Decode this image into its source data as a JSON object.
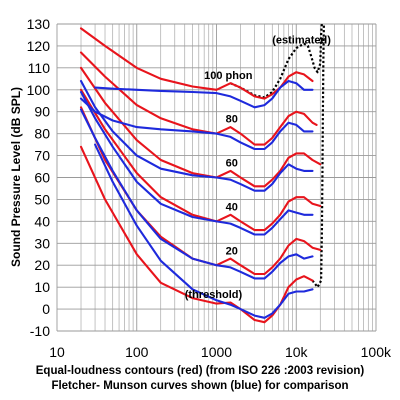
{
  "chart_data": {
    "type": "line",
    "title": "",
    "ylabel": "Sound Pressure Level (dB SPL)",
    "xscale": "log",
    "xlim": [
      10,
      100000
    ],
    "ylim": [
      -10,
      130
    ],
    "grid": true,
    "xticks": [
      {
        "value": 10,
        "label": "10"
      },
      {
        "value": 100,
        "label": "100"
      },
      {
        "value": 1000,
        "label": "1000"
      },
      {
        "value": 10000,
        "label": "10k"
      },
      {
        "value": 100000,
        "label": "100k"
      }
    ],
    "yticks": [
      {
        "value": 130,
        "label": "130"
      },
      {
        "value": 120,
        "label": "120"
      },
      {
        "value": 110,
        "label": "110"
      },
      {
        "value": 100,
        "label": "100"
      },
      {
        "value": 90,
        "label": "90"
      },
      {
        "value": 80,
        "label": "80"
      },
      {
        "value": 70,
        "label": "70"
      },
      {
        "value": 60,
        "label": "60"
      },
      {
        "value": 50,
        "label": "50"
      },
      {
        "value": 40,
        "label": "40"
      },
      {
        "value": 30,
        "label": "30"
      },
      {
        "value": 20,
        "label": "20"
      },
      {
        "value": 10,
        "label": "10"
      },
      {
        "value": 0,
        "label": "0"
      },
      {
        "value": -10,
        "label": "-10"
      }
    ],
    "colors": {
      "iso": "#e8141c",
      "fm": "#1e2adc",
      "est": "#000000",
      "grid": "#9a9a9a"
    },
    "iso_series": [
      {
        "id": "iso-100",
        "points": [
          [
            20,
            128
          ],
          [
            40,
            120
          ],
          [
            100,
            110
          ],
          [
            200,
            105
          ],
          [
            500,
            101.5
          ],
          [
            1000,
            100
          ],
          [
            1500,
            103
          ],
          [
            2000,
            101
          ],
          [
            3000,
            97
          ],
          [
            4000,
            96
          ],
          [
            5000,
            98
          ],
          [
            6300,
            101
          ],
          [
            8000,
            106
          ],
          [
            10000,
            108
          ],
          [
            12500,
            107
          ],
          [
            16000,
            104
          ]
        ]
      },
      {
        "id": "iso-80",
        "points": [
          [
            20,
            117
          ],
          [
            40,
            106
          ],
          [
            100,
            93
          ],
          [
            200,
            87
          ],
          [
            500,
            82
          ],
          [
            1000,
            80
          ],
          [
            1500,
            83
          ],
          [
            2000,
            80
          ],
          [
            3000,
            75
          ],
          [
            4000,
            75
          ],
          [
            5000,
            78
          ],
          [
            6300,
            83
          ],
          [
            8000,
            88
          ],
          [
            10000,
            90
          ],
          [
            12500,
            89
          ],
          [
            16000,
            85
          ],
          [
            18000,
            84
          ]
        ]
      },
      {
        "id": "iso-60",
        "points": [
          [
            20,
            110
          ],
          [
            40,
            94
          ],
          [
            100,
            77
          ],
          [
            200,
            68
          ],
          [
            500,
            62
          ],
          [
            1000,
            60
          ],
          [
            1500,
            63
          ],
          [
            2000,
            60
          ],
          [
            3000,
            56
          ],
          [
            4000,
            56
          ],
          [
            5000,
            59
          ],
          [
            6300,
            63
          ],
          [
            8000,
            69
          ],
          [
            10000,
            71
          ],
          [
            12500,
            71
          ],
          [
            16000,
            68
          ],
          [
            20000,
            66
          ]
        ]
      },
      {
        "id": "iso-40",
        "points": [
          [
            20,
            100
          ],
          [
            40,
            82
          ],
          [
            100,
            62
          ],
          [
            200,
            51
          ],
          [
            500,
            43
          ],
          [
            1000,
            40
          ],
          [
            1500,
            43
          ],
          [
            2000,
            40
          ],
          [
            3000,
            36
          ],
          [
            4000,
            36
          ],
          [
            5000,
            39
          ],
          [
            6300,
            43
          ],
          [
            8000,
            49
          ],
          [
            10000,
            51
          ],
          [
            12500,
            51
          ],
          [
            16000,
            48
          ],
          [
            20000,
            47
          ]
        ]
      },
      {
        "id": "iso-20",
        "points": [
          [
            20,
            92
          ],
          [
            40,
            68
          ],
          [
            100,
            45
          ],
          [
            200,
            33
          ],
          [
            500,
            23
          ],
          [
            1000,
            20
          ],
          [
            1500,
            23
          ],
          [
            2000,
            20
          ],
          [
            3000,
            16
          ],
          [
            4000,
            16
          ],
          [
            5000,
            19
          ],
          [
            6300,
            23
          ],
          [
            8000,
            29
          ],
          [
            10000,
            32
          ],
          [
            12500,
            31
          ],
          [
            16000,
            28
          ],
          [
            20000,
            27
          ]
        ]
      },
      {
        "id": "iso-threshold",
        "points": [
          [
            20,
            74
          ],
          [
            40,
            50
          ],
          [
            100,
            25
          ],
          [
            200,
            12
          ],
          [
            500,
            5
          ],
          [
            1000,
            2.5
          ],
          [
            1500,
            3
          ],
          [
            2000,
            0
          ],
          [
            3000,
            -5
          ],
          [
            4000,
            -6
          ],
          [
            5000,
            -3
          ],
          [
            6300,
            2
          ],
          [
            8000,
            10
          ],
          [
            10000,
            13.5
          ],
          [
            12500,
            15
          ],
          [
            16000,
            13
          ]
        ]
      }
    ],
    "fm_series": [
      {
        "id": "fm-100",
        "points": [
          [
            30,
            101
          ],
          [
            50,
            100.5
          ],
          [
            100,
            100
          ],
          [
            200,
            99.5
          ],
          [
            500,
            99
          ],
          [
            1000,
            98.5
          ],
          [
            1500,
            97
          ],
          [
            2000,
            95
          ],
          [
            3000,
            92
          ],
          [
            4000,
            93
          ],
          [
            5000,
            96
          ],
          [
            6300,
            101
          ],
          [
            8000,
            104
          ],
          [
            10000,
            103
          ],
          [
            12500,
            100
          ],
          [
            16000,
            100
          ]
        ]
      },
      {
        "id": "fm-80",
        "points": [
          [
            20,
            96
          ],
          [
            30,
            90
          ],
          [
            50,
            86
          ],
          [
            100,
            83
          ],
          [
            200,
            82
          ],
          [
            500,
            81
          ],
          [
            1000,
            80
          ],
          [
            1500,
            78.5
          ],
          [
            2000,
            76
          ],
          [
            3000,
            73
          ],
          [
            4000,
            73
          ],
          [
            5000,
            76
          ],
          [
            6300,
            81
          ],
          [
            8000,
            85
          ],
          [
            10000,
            84
          ],
          [
            12500,
            81
          ],
          [
            16000,
            81
          ]
        ]
      },
      {
        "id": "fm-60",
        "points": [
          [
            20,
            104
          ],
          [
            30,
            92
          ],
          [
            50,
            81
          ],
          [
            100,
            70
          ],
          [
            200,
            64
          ],
          [
            500,
            61
          ],
          [
            1000,
            60
          ],
          [
            1500,
            59
          ],
          [
            2000,
            57
          ],
          [
            3000,
            54
          ],
          [
            4000,
            54
          ],
          [
            5000,
            57
          ],
          [
            6300,
            62
          ],
          [
            8000,
            66
          ],
          [
            10000,
            64
          ],
          [
            12500,
            63
          ],
          [
            16000,
            63
          ]
        ]
      },
      {
        "id": "fm-40",
        "points": [
          [
            20,
            99
          ],
          [
            30,
            87
          ],
          [
            50,
            74
          ],
          [
            100,
            58
          ],
          [
            200,
            48
          ],
          [
            500,
            42
          ],
          [
            1000,
            40
          ],
          [
            1500,
            39
          ],
          [
            2000,
            37
          ],
          [
            3000,
            34
          ],
          [
            4000,
            34
          ],
          [
            5000,
            37
          ],
          [
            6300,
            41
          ],
          [
            8000,
            45
          ],
          [
            10000,
            44
          ],
          [
            12500,
            43
          ],
          [
            16000,
            43
          ]
        ]
      },
      {
        "id": "fm-20",
        "points": [
          [
            20,
            91
          ],
          [
            30,
            78
          ],
          [
            50,
            63
          ],
          [
            100,
            45
          ],
          [
            200,
            32
          ],
          [
            500,
            23
          ],
          [
            1000,
            20
          ],
          [
            1500,
            19
          ],
          [
            2000,
            17
          ],
          [
            3000,
            14
          ],
          [
            4000,
            14
          ],
          [
            5000,
            17
          ],
          [
            6300,
            21
          ],
          [
            8000,
            24
          ],
          [
            10000,
            25
          ],
          [
            12500,
            23
          ],
          [
            16000,
            24
          ]
        ]
      },
      {
        "id": "fm-threshold",
        "points": [
          [
            30,
            75
          ],
          [
            50,
            58
          ],
          [
            100,
            38
          ],
          [
            200,
            22
          ],
          [
            500,
            9
          ],
          [
            1000,
            4
          ],
          [
            1500,
            2
          ],
          [
            2000,
            0
          ],
          [
            3000,
            -3
          ],
          [
            4000,
            -4
          ],
          [
            5000,
            -2
          ],
          [
            6300,
            2
          ],
          [
            8000,
            7
          ],
          [
            10000,
            8
          ],
          [
            12500,
            8
          ],
          [
            16000,
            9
          ]
        ]
      }
    ],
    "estimated_series": [
      {
        "id": "est-100",
        "points": [
          [
            1500,
            103
          ],
          [
            2000,
            101
          ],
          [
            3000,
            97.5
          ],
          [
            4000,
            96.5
          ],
          [
            5000,
            99
          ],
          [
            6300,
            105
          ],
          [
            8000,
            114
          ],
          [
            10000,
            119
          ],
          [
            12500,
            121
          ],
          [
            14000,
            120
          ],
          [
            15500,
            115
          ],
          [
            17000,
            110
          ],
          [
            18500,
            108
          ],
          [
            20000,
            112
          ],
          [
            20500,
            125
          ],
          [
            21000,
            130
          ]
        ]
      },
      {
        "id": "est-right-edge",
        "points": [
          [
            16000,
            13
          ],
          [
            18500,
            10
          ],
          [
            20500,
            13
          ],
          [
            21000,
            35
          ],
          [
            21300,
            60
          ],
          [
            21600,
            90
          ],
          [
            21900,
            115
          ],
          [
            22200,
            130
          ]
        ]
      }
    ],
    "annotations": [
      {
        "id": "ann-estimated",
        "text": "(estimated)",
        "x": 5000,
        "y": 121,
        "anchor": "start"
      },
      {
        "id": "ann-100-phon",
        "text": "100 phon",
        "x": 700,
        "y": 105,
        "anchor": "start"
      },
      {
        "id": "ann-80",
        "text": "80",
        "x": 1300,
        "y": 85,
        "anchor": "start"
      },
      {
        "id": "ann-60",
        "text": "60",
        "x": 1300,
        "y": 65,
        "anchor": "start"
      },
      {
        "id": "ann-40",
        "text": "40",
        "x": 1300,
        "y": 45,
        "anchor": "start"
      },
      {
        "id": "ann-20",
        "text": "20",
        "x": 1300,
        "y": 25,
        "anchor": "start"
      },
      {
        "id": "ann-threshold",
        "text": "(threshold)",
        "x": 400,
        "y": 5,
        "anchor": "start"
      }
    ]
  },
  "caption_line1": "Equal-loudness contours (red) (from ISO 226 :2003 revision)",
  "caption_line2": "Fletcher- Munson curves shown (blue) for comparison"
}
